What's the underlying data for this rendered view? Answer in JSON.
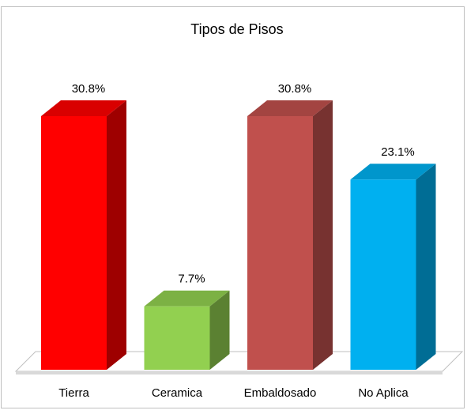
{
  "chart_data": {
    "type": "bar3d",
    "title": "Tipos de Pisos",
    "categories": [
      "Tierra",
      "Ceramica",
      "Embaldosado",
      "No Aplica"
    ],
    "values": [
      30.8,
      7.7,
      30.8,
      23.1
    ],
    "value_labels": [
      "30.8%",
      "7.7%",
      "30.8%",
      "23.1%"
    ],
    "colors": [
      "#ff0000",
      "#92d050",
      "#c0504d",
      "#00b0f0"
    ]
  }
}
